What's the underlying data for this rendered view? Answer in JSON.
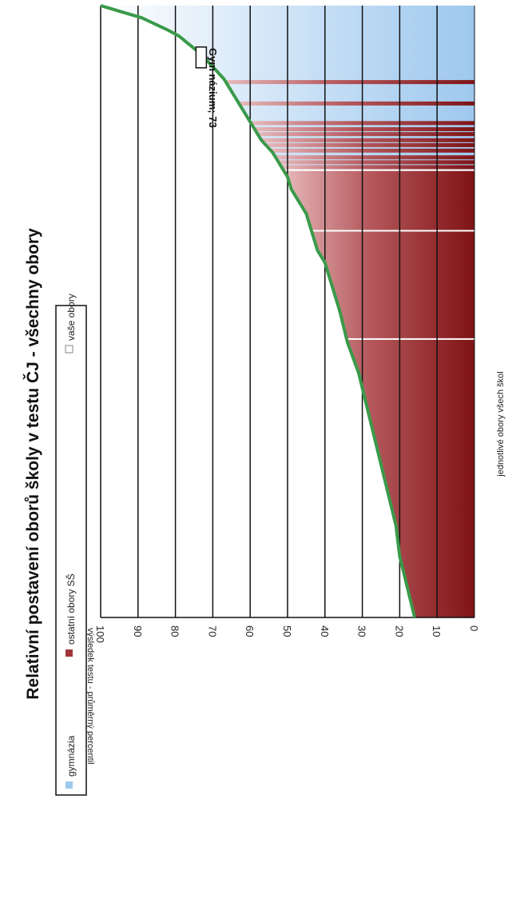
{
  "chart_data": {
    "type": "area",
    "title": "Relativní postavení oborů školy v testu ČJ - všechny obory",
    "ylabel": "výsledek testu - průměrný percentil",
    "xlabel": "jednotlivé obory všech škol",
    "ylim": [
      0,
      100
    ],
    "yticks": [
      "0",
      "10",
      "20",
      "30",
      "40",
      "50",
      "60",
      "70",
      "80",
      "90",
      "100"
    ],
    "grid": true,
    "legend": [
      {
        "label": "gymnázia",
        "color": "#9ec8ee"
      },
      {
        "label": "ostatní obory SŠ",
        "color": "#a3353a"
      },
      {
        "label": "vaše obory",
        "color": "#ffffff"
      }
    ],
    "legend_position": "top",
    "curve_color": "#3a9a4a",
    "curve": {
      "x": [
        0,
        2,
        4,
        5,
        6,
        8,
        10,
        12,
        14,
        15,
        16,
        18,
        20,
        22,
        24,
        25,
        26,
        28,
        30,
        32,
        34,
        36,
        38,
        40,
        42,
        44,
        46,
        48,
        50,
        55,
        60,
        65,
        70,
        75,
        80,
        85,
        90,
        95,
        100
      ],
      "y": [
        100,
        89,
        82,
        79,
        77,
        73,
        70,
        67,
        65,
        64,
        63,
        61,
        59,
        57,
        54,
        53,
        52,
        50,
        49,
        47,
        45,
        44,
        43,
        42,
        40,
        39,
        38,
        37,
        36,
        34,
        31,
        29,
        27,
        25,
        23,
        21,
        20,
        18,
        16
      ]
    },
    "gymnazia_end_x": 27,
    "bars": [
      {
        "x": 12.5,
        "group": "ostatní"
      },
      {
        "x": 16.0,
        "group": "ostatní"
      },
      {
        "x": 19.2,
        "group": "ostatní"
      },
      {
        "x": 20.2,
        "group": "ostatní"
      },
      {
        "x": 21.0,
        "group": "ostatní"
      },
      {
        "x": 22.0,
        "group": "ostatní"
      },
      {
        "x": 22.8,
        "group": "ostatní"
      },
      {
        "x": 23.7,
        "group": "ostatní"
      },
      {
        "x": 24.8,
        "group": "ostatní"
      },
      {
        "x": 25.6,
        "group": "ostatní"
      },
      {
        "x": 26.4,
        "group": "ostatní"
      }
    ],
    "your_programs_x": [
      26.9,
      36.8,
      54.5
    ],
    "annotation": {
      "text": "Gym názium; 73",
      "x": 3.5,
      "y": 73
    }
  }
}
